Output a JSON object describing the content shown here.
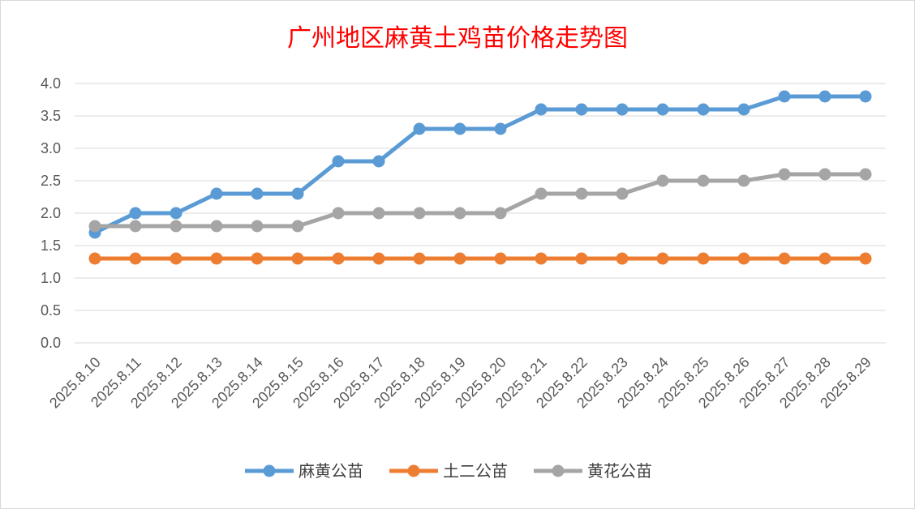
{
  "chart_data": {
    "type": "line",
    "title": "广州地区麻黄土鸡苗价格走势图",
    "categories": [
      "2025.8.10",
      "2025.8.11",
      "2025.8.12",
      "2025.8.13",
      "2025.8.14",
      "2025.8.15",
      "2025.8.16",
      "2025.8.17",
      "2025.8.18",
      "2025.8.19",
      "2025.8.20",
      "2025.8.21",
      "2025.8.22",
      "2025.8.23",
      "2025.8.24",
      "2025.8.25",
      "2025.8.26",
      "2025.8.27",
      "2025.8.28",
      "2025.8.29"
    ],
    "ylim": [
      0,
      4.0
    ],
    "yticks": [
      "0.0",
      "0.5",
      "1.0",
      "1.5",
      "2.0",
      "2.5",
      "3.0",
      "3.5",
      "4.0"
    ],
    "grid": true,
    "legend_position": "bottom",
    "title_color": "#ff0000",
    "series": [
      {
        "name": "麻黄公苗",
        "color": "#5b9bd5",
        "values": [
          1.7,
          2.0,
          2.0,
          2.3,
          2.3,
          2.3,
          2.8,
          2.8,
          3.3,
          3.3,
          3.3,
          3.6,
          3.6,
          3.6,
          3.6,
          3.6,
          3.6,
          3.8,
          3.8,
          3.8
        ]
      },
      {
        "name": "土二公苗",
        "color": "#ed7d31",
        "values": [
          1.3,
          1.3,
          1.3,
          1.3,
          1.3,
          1.3,
          1.3,
          1.3,
          1.3,
          1.3,
          1.3,
          1.3,
          1.3,
          1.3,
          1.3,
          1.3,
          1.3,
          1.3,
          1.3,
          1.3
        ]
      },
      {
        "name": "黄花公苗",
        "color": "#a5a5a5",
        "values": [
          1.8,
          1.8,
          1.8,
          1.8,
          1.8,
          1.8,
          2.0,
          2.0,
          2.0,
          2.0,
          2.0,
          2.3,
          2.3,
          2.3,
          2.5,
          2.5,
          2.5,
          2.6,
          2.6,
          2.6
        ]
      }
    ]
  }
}
